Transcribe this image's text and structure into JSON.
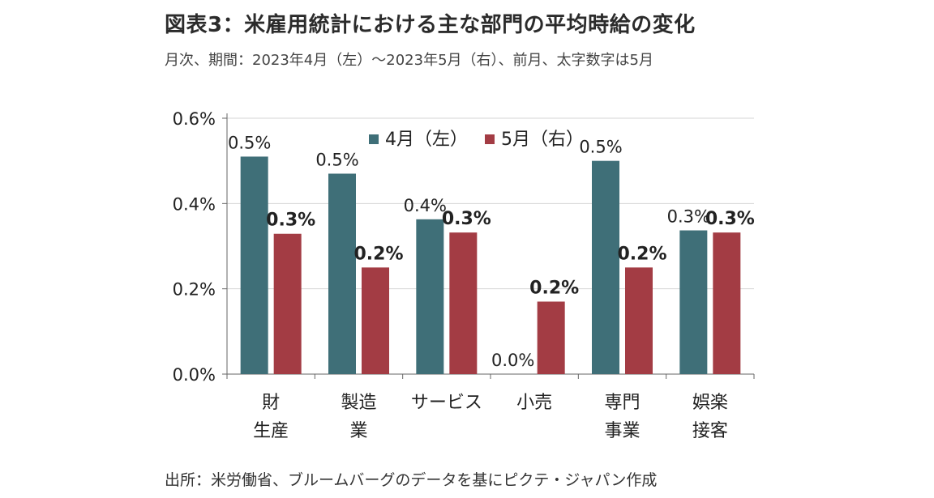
{
  "header": {
    "title": "図表3：米雇用統計における主な部門の平均時給の変化",
    "subtitle": "月次、期間：2023年4月（左）～2023年5月（右）、前月、太字数字は5月"
  },
  "footer": {
    "source": "出所：米労働省、ブルームバーグのデータを基にピクテ・ジャパン作成"
  },
  "chart_data": {
    "type": "bar",
    "categories": [
      [
        "財",
        "生産"
      ],
      [
        "製造",
        "業"
      ],
      [
        "サービス"
      ],
      [
        "小売"
      ],
      [
        "専門",
        "事業"
      ],
      [
        "娯楽",
        "接客"
      ]
    ],
    "series": [
      {
        "name": "4月（左）",
        "color": "#3f6f78",
        "values": [
          0.51,
          0.47,
          0.363,
          0.0,
          0.5,
          0.337
        ],
        "labels": [
          "0.5%",
          "0.5%",
          "0.4%",
          "0.0%",
          "0.5%",
          "0.3%"
        ]
      },
      {
        "name": "5月（右）",
        "color": "#a33c44",
        "values": [
          0.329,
          0.25,
          0.332,
          0.17,
          0.25,
          0.332
        ],
        "labels": [
          "0.3%",
          "0.2%",
          "0.3%",
          "0.2%",
          "0.2%",
          "0.3%"
        ]
      }
    ],
    "y_ticks": [
      "0.0%",
      "0.2%",
      "0.4%",
      "0.6%"
    ],
    "ylim": [
      0,
      0.6
    ],
    "grid": true,
    "legend_position": "top-left"
  }
}
